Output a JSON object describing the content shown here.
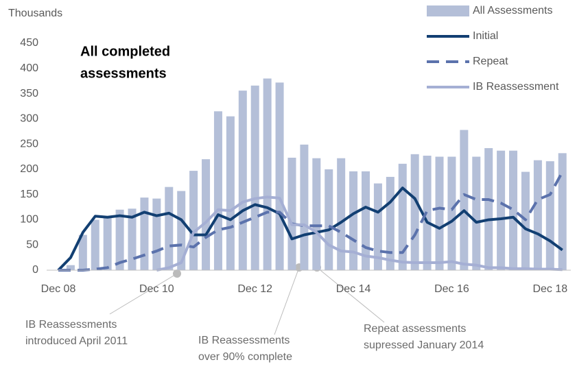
{
  "chart_data": {
    "type": "bar",
    "title": [
      "All completed",
      "assessments"
    ],
    "y_label": "Thousands",
    "categories": [
      "Dec 08",
      null,
      null,
      null,
      null,
      null,
      null,
      null,
      "Dec 10",
      null,
      null,
      null,
      null,
      null,
      null,
      null,
      "Dec 12",
      null,
      null,
      null,
      null,
      null,
      null,
      null,
      "Dec 14",
      null,
      null,
      null,
      null,
      null,
      null,
      null,
      "Dec 16",
      null,
      null,
      null,
      null,
      null,
      null,
      null,
      "Dec 18",
      null
    ],
    "ylim": [
      0,
      450
    ],
    "yticks": [
      0,
      50,
      100,
      150,
      200,
      250,
      300,
      350,
      400,
      450
    ],
    "series": [
      {
        "name": "All Assessments",
        "style": "bar",
        "color": "#b4bfd8",
        "values": [
          0,
          10,
          70,
          100,
          105,
          120,
          122,
          144,
          142,
          165,
          157,
          197,
          220,
          315,
          305,
          356,
          366,
          380,
          372,
          223,
          249,
          222,
          200,
          222,
          196,
          196,
          172,
          185,
          211,
          230,
          227,
          225,
          225,
          278,
          225,
          242,
          237,
          237,
          195,
          218,
          216,
          232
        ]
      },
      {
        "name": "Initial",
        "style": "solid",
        "color": "#123f72",
        "values": [
          0,
          25,
          75,
          107,
          105,
          108,
          105,
          115,
          108,
          113,
          100,
          70,
          70,
          110,
          100,
          118,
          130,
          124,
          112,
          62,
          70,
          75,
          80,
          95,
          112,
          125,
          115,
          135,
          163,
          142,
          95,
          83,
          97,
          118,
          95,
          100,
          102,
          105,
          82,
          72,
          58,
          40
        ]
      },
      {
        "name": "Repeat",
        "style": "dashed",
        "color": "#5b72ac",
        "values": [
          0,
          0,
          0,
          2,
          5,
          15,
          22,
          30,
          38,
          48,
          50,
          46,
          65,
          80,
          85,
          95,
          105,
          115,
          115,
          92,
          88,
          88,
          88,
          75,
          60,
          45,
          38,
          35,
          35,
          70,
          118,
          123,
          120,
          150,
          140,
          140,
          133,
          120,
          100,
          140,
          150,
          195
        ]
      },
      {
        "name": "IB Reassessment",
        "style": "solid",
        "color": "#a5afd4",
        "values": [
          null,
          null,
          null,
          null,
          null,
          null,
          null,
          null,
          0,
          5,
          15,
          75,
          95,
          120,
          118,
          135,
          142,
          145,
          143,
          90,
          90,
          75,
          50,
          38,
          36,
          28,
          25,
          20,
          16,
          15,
          15,
          15,
          17,
          12,
          10,
          5,
          5,
          3,
          3,
          2,
          2,
          1
        ]
      }
    ],
    "annotations": [
      {
        "lines": [
          "IB Reassessments",
          "introduced April 2011"
        ]
      },
      {
        "lines": [
          "IB Reassessments",
          "over 90% complete"
        ]
      },
      {
        "lines": [
          "Repeat assessments",
          "supressed January 2014"
        ]
      }
    ]
  }
}
